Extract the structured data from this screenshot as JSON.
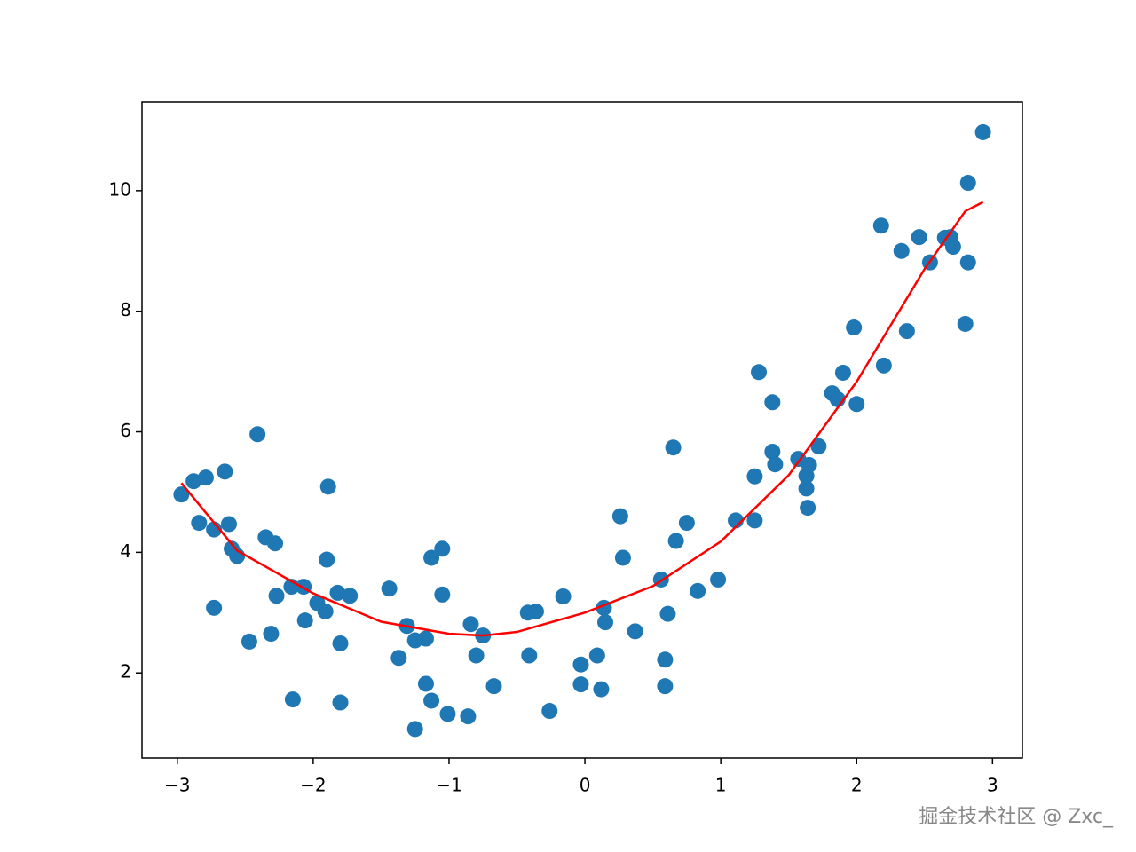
{
  "chart_data": {
    "type": "scatter",
    "xlim": [
      -3.26,
      3.22
    ],
    "ylim": [
      0.59,
      11.47
    ],
    "xticks": [
      {
        "value": -3,
        "label": "−3"
      },
      {
        "value": -2,
        "label": "−2"
      },
      {
        "value": -1,
        "label": "−1"
      },
      0,
      1,
      2,
      3
    ],
    "yticks": [
      2,
      4,
      6,
      8,
      10
    ],
    "series": [
      {
        "type": "scatter",
        "color": "#1f77b4",
        "x": [
          -2.97,
          -2.88,
          -2.79,
          -2.65,
          -2.84,
          -2.73,
          -2.62,
          -2.6,
          -2.56,
          -2.73,
          -2.41,
          -2.35,
          -2.28,
          -2.47,
          -2.31,
          -2.27,
          -2.16,
          -2.07,
          -2.15,
          -2.06,
          -1.97,
          -1.91,
          -1.89,
          -1.9,
          -1.82,
          -1.73,
          -1.8,
          -1.8,
          -1.44,
          -1.37,
          -1.31,
          -1.25,
          -1.25,
          -1.17,
          -1.17,
          -1.13,
          -1.13,
          -1.05,
          -1.05,
          -1.01,
          -0.86,
          -0.84,
          -0.8,
          -0.75,
          -0.67,
          -0.42,
          -0.41,
          -0.36,
          -0.26,
          -0.16,
          -0.03,
          -0.03,
          0.09,
          0.12,
          0.14,
          0.15,
          0.26,
          0.28,
          0.37,
          0.56,
          0.59,
          0.59,
          0.61,
          0.65,
          0.67,
          0.75,
          0.83,
          0.98,
          1.11,
          1.25,
          1.25,
          1.28,
          1.38,
          1.38,
          1.4,
          1.57,
          1.63,
          1.63,
          1.65,
          1.64,
          1.72,
          1.82,
          1.86,
          1.9,
          1.98,
          2.0,
          2.18,
          2.2,
          2.33,
          2.37,
          2.46,
          2.54,
          2.65,
          2.69,
          2.71,
          2.8,
          2.82,
          2.82,
          2.93
        ],
        "values": [
          4.96,
          5.18,
          5.24,
          5.34,
          4.49,
          4.38,
          4.47,
          4.06,
          3.94,
          3.08,
          5.96,
          4.25,
          4.15,
          2.52,
          2.65,
          3.28,
          3.43,
          3.43,
          1.56,
          2.87,
          3.16,
          3.02,
          5.09,
          3.88,
          3.33,
          3.28,
          2.49,
          1.51,
          3.4,
          2.25,
          2.78,
          2.54,
          1.07,
          2.57,
          1.82,
          3.91,
          1.54,
          4.06,
          3.3,
          1.32,
          1.28,
          2.81,
          2.29,
          2.62,
          1.78,
          3.0,
          2.29,
          3.02,
          1.37,
          3.27,
          2.14,
          1.81,
          2.29,
          1.73,
          3.08,
          2.84,
          4.6,
          3.91,
          2.69,
          3.55,
          2.22,
          1.78,
          2.98,
          5.74,
          4.19,
          4.49,
          3.36,
          3.55,
          4.53,
          5.26,
          4.53,
          6.99,
          6.49,
          5.67,
          5.46,
          5.55,
          5.06,
          5.27,
          5.45,
          4.74,
          5.76,
          6.64,
          6.54,
          6.98,
          7.73,
          6.46,
          9.42,
          7.1,
          9.0,
          7.67,
          9.23,
          8.81,
          9.22,
          9.23,
          9.07,
          7.79,
          8.81,
          10.13,
          10.97
        ]
      },
      {
        "type": "line",
        "color": "#ff0000",
        "x": [
          -2.97,
          -2.56,
          -2.0,
          -1.5,
          -1.0,
          -0.75,
          -0.5,
          0,
          0.5,
          1.0,
          1.5,
          2.0,
          2.5,
          2.8,
          2.93
        ],
        "values": [
          5.15,
          4.03,
          3.32,
          2.85,
          2.65,
          2.62,
          2.68,
          3.0,
          3.44,
          4.18,
          5.28,
          6.83,
          8.7,
          9.66,
          9.81
        ]
      }
    ]
  },
  "watermark": "掘金技术社区 @ Zxc_"
}
